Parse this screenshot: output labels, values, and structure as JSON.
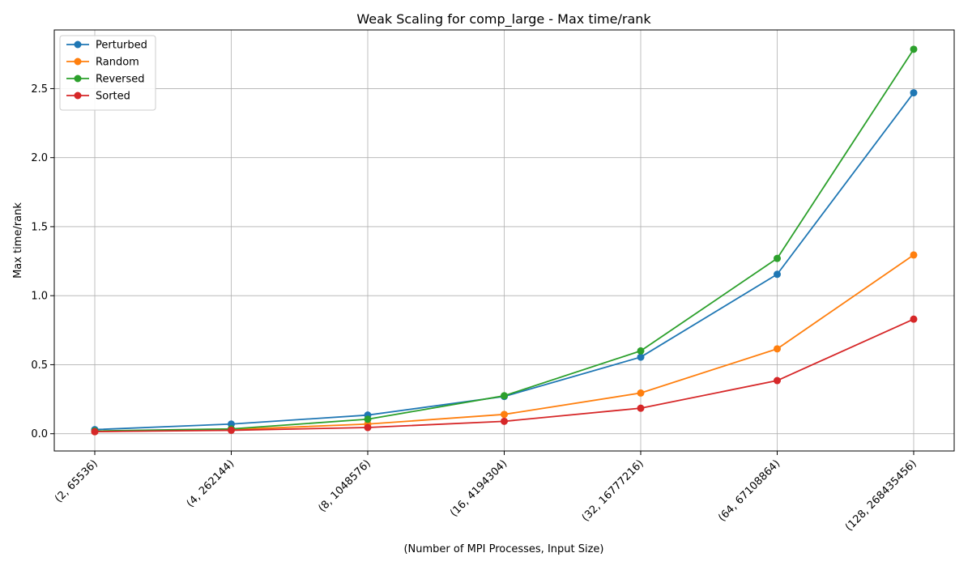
{
  "chart_data": {
    "type": "line",
    "title": "Weak Scaling for comp_large - Max time/rank",
    "xlabel": "(Number of MPI Processes, Input Size)",
    "ylabel": "Max time/rank",
    "categories": [
      "(2, 65536)",
      "(4, 262144)",
      "(8, 1048576)",
      "(16, 4194304)",
      "(32, 16777216)",
      "(64, 67108864)",
      "(128, 268435456)"
    ],
    "ylim": [
      -0.125,
      2.925
    ],
    "yticks": [
      "0.0",
      "0.5",
      "1.0",
      "1.5",
      "2.0",
      "2.5"
    ],
    "ytick_values": [
      0,
      0.5,
      1.0,
      1.5,
      2.0,
      2.5
    ],
    "grid": true,
    "legend_position": "top-left",
    "series": [
      {
        "name": "Perturbed",
        "color": "#1f77b4",
        "values": [
          0.03,
          0.07,
          0.135,
          0.27,
          0.555,
          1.155,
          2.47
        ]
      },
      {
        "name": "Random",
        "color": "#ff7f0e",
        "values": [
          0.015,
          0.03,
          0.07,
          0.14,
          0.295,
          0.615,
          1.295
        ]
      },
      {
        "name": "Reversed",
        "color": "#2ca02c",
        "values": [
          0.02,
          0.035,
          0.105,
          0.275,
          0.6,
          1.27,
          2.785
        ]
      },
      {
        "name": "Sorted",
        "color": "#d62728",
        "values": [
          0.015,
          0.025,
          0.045,
          0.09,
          0.185,
          0.385,
          0.83
        ]
      }
    ]
  }
}
